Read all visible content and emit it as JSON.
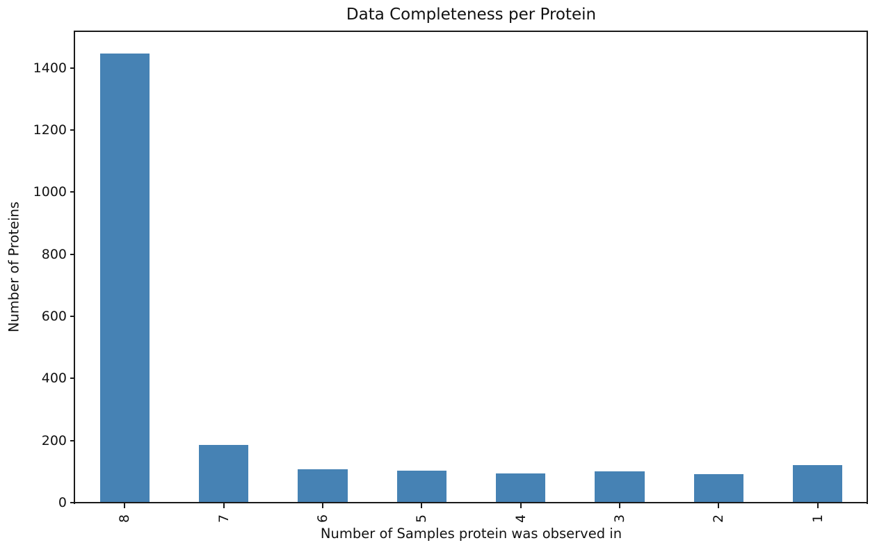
{
  "figure": {
    "background": "#ffffff",
    "text_color": "#111111",
    "axis_color": "#1a1a1a"
  },
  "chart_data": {
    "type": "bar",
    "title": "Data Completeness per Protein",
    "xlabel": "Number of Samples protein was observed in",
    "ylabel": "Number of Proteins",
    "categories": [
      "8",
      "7",
      "6",
      "5",
      "4",
      "3",
      "2",
      "1"
    ],
    "values": [
      1446,
      185,
      107,
      104,
      93,
      100,
      91,
      120
    ],
    "yticks": [
      0,
      200,
      400,
      600,
      800,
      1000,
      1200,
      1400
    ],
    "ylim": [
      0,
      1518
    ],
    "bar_color": "#4682b4",
    "bar_width_fraction": 0.5,
    "x_tick_rotation_deg": 90,
    "grid": false,
    "legend": "none"
  }
}
